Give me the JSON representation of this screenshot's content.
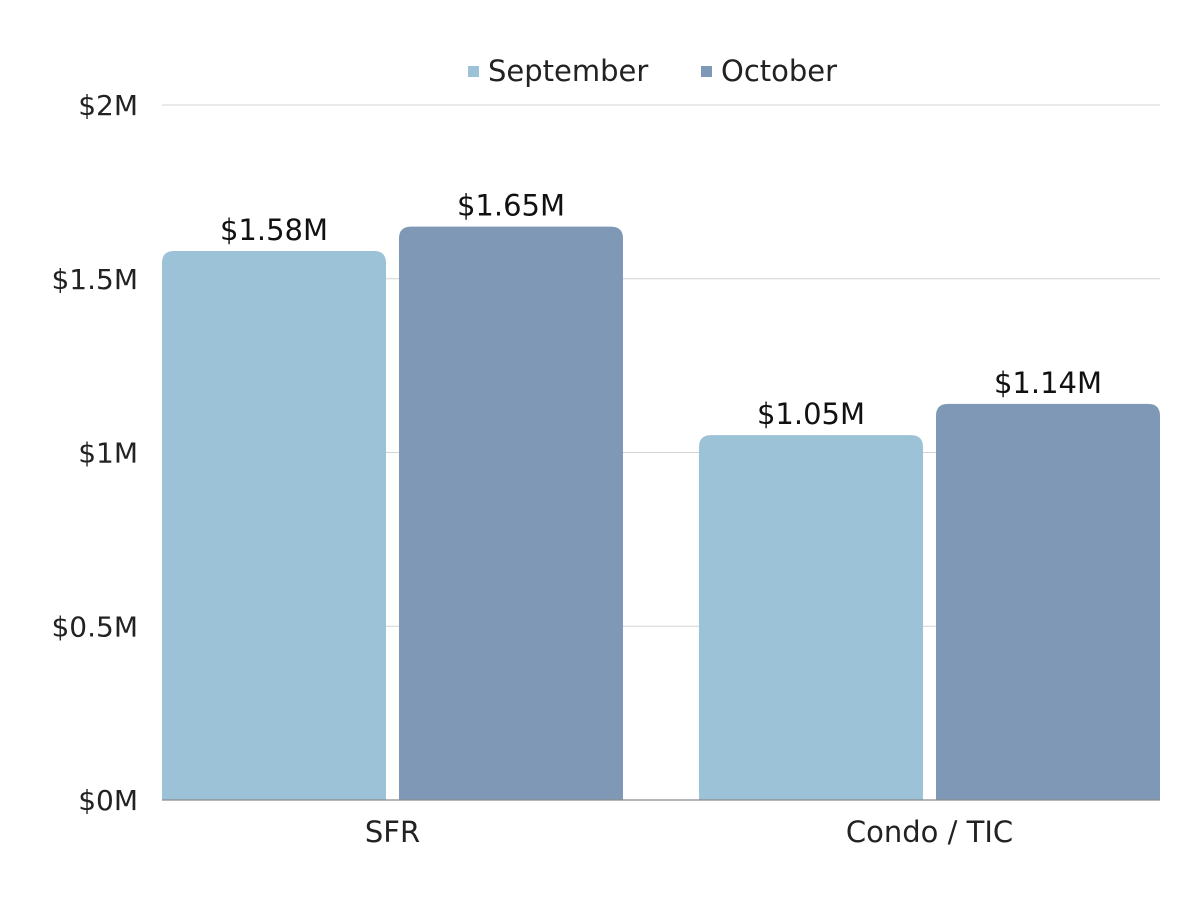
{
  "chart_data": {
    "type": "bar",
    "title": "",
    "xlabel": "",
    "ylabel": "",
    "categories": [
      "SFR",
      "Condo / TIC"
    ],
    "series": [
      {
        "name": "September",
        "color": "#9cc2d8",
        "values": [
          1.58,
          1.05
        ],
        "labels": [
          "$1.58M",
          "$1.05M"
        ]
      },
      {
        "name": "October",
        "color": "#7f98b5",
        "values": [
          1.65,
          1.14
        ],
        "labels": [
          "$1.65M",
          "$1.14M"
        ]
      }
    ],
    "ylim": [
      0,
      2
    ],
    "yticks": [
      0,
      0.5,
      1,
      1.5,
      2
    ],
    "ytick_labels": [
      "$0M",
      "$0.5M",
      "$1M",
      "$1.5M",
      "$2M"
    ],
    "grid": true,
    "legend_position": "top-center"
  }
}
